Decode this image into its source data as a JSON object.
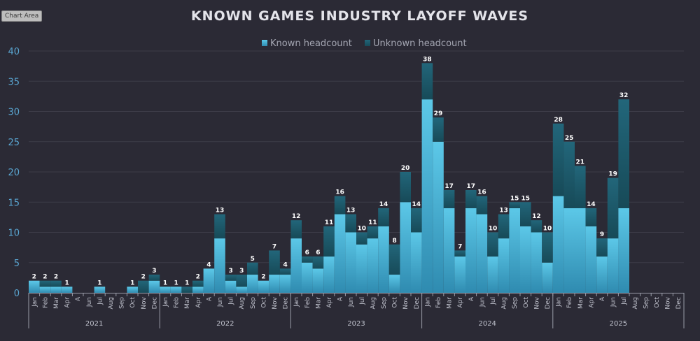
{
  "ui": {
    "chart_area_label": "Chart Area"
  },
  "chart_data": {
    "type": "bar",
    "stacked": true,
    "title": "KNOWN GAMES INDUSTRY LAYOFF WAVES",
    "xlabel": "",
    "ylabel": "",
    "ylim": [
      0,
      40
    ],
    "yticks": [
      0,
      5,
      10,
      15,
      20,
      25,
      30,
      35,
      40
    ],
    "grid": true,
    "legend_position": "top-center",
    "colors": {
      "background": "#2b2a35",
      "known": "#5bc3e4",
      "unknown": "#1d5a6c",
      "grid": "#3d3c48",
      "axis_text": "#5aa6d2"
    },
    "years": [
      "2021",
      "2022",
      "2023",
      "2024",
      "2025"
    ],
    "month_labels": [
      [
        "Jan",
        "Feb",
        "Mar",
        "Apr",
        "A",
        "Jun",
        "Jul",
        "Aug",
        "Sep",
        "Oct",
        "Nov",
        "Dec"
      ],
      [
        "Jan",
        "Feb",
        "Mar",
        "Apr",
        "A",
        "Jun",
        "Jul",
        "Aug",
        "Sep",
        "Oct",
        "Nov",
        "Dec"
      ],
      [
        "Jan",
        "Feb",
        "Mar",
        "Apr",
        "A",
        "Jun",
        "Jul",
        "Aug",
        "Sep",
        "Oct",
        "Nov",
        "Dec"
      ],
      [
        "Jan",
        "Feb",
        "Mar",
        "Apr",
        "A",
        "Jun",
        "Jul",
        "Aug",
        "Sep",
        "Oct",
        "Nov",
        "Dec"
      ],
      [
        "Jan",
        "Feb",
        "Mar",
        "Apr",
        "A",
        "Jun",
        "Jul",
        "Aug",
        "Sep",
        "Oct",
        "Nov",
        "Dec"
      ]
    ],
    "series": [
      {
        "name": "Known headcount",
        "values": [
          2,
          1,
          1,
          1,
          null,
          null,
          1,
          null,
          null,
          1,
          0,
          2,
          1,
          1,
          0,
          1,
          4,
          9,
          2,
          1,
          3,
          2,
          3,
          3,
          9,
          5,
          4,
          6,
          13,
          10,
          8,
          9,
          11,
          3,
          15,
          10,
          32,
          25,
          14,
          6,
          14,
          13,
          6,
          9,
          14,
          11,
          10,
          5,
          16,
          14,
          14,
          11,
          6,
          9,
          14,
          null,
          null,
          null,
          null,
          null
        ]
      },
      {
        "name": "Unknown headcount",
        "values": [
          0,
          1,
          1,
          0,
          null,
          null,
          0,
          null,
          null,
          0,
          2,
          1,
          0,
          0,
          1,
          1,
          0,
          4,
          1,
          2,
          2,
          0,
          4,
          1,
          3,
          1,
          2,
          5,
          3,
          3,
          2,
          2,
          3,
          5,
          5,
          4,
          6,
          4,
          3,
          1,
          3,
          3,
          4,
          4,
          1,
          4,
          2,
          5,
          12,
          11,
          7,
          3,
          3,
          10,
          18,
          null,
          null,
          null,
          null,
          null
        ]
      }
    ],
    "totals": [
      2,
      2,
      2,
      1,
      null,
      null,
      1,
      null,
      null,
      1,
      2,
      3,
      1,
      1,
      1,
      2,
      4,
      13,
      3,
      3,
      5,
      2,
      7,
      4,
      12,
      6,
      6,
      11,
      16,
      13,
      10,
      11,
      14,
      8,
      20,
      14,
      38,
      29,
      17,
      7,
      17,
      16,
      10,
      13,
      15,
      15,
      12,
      10,
      28,
      25,
      21,
      14,
      9,
      19,
      32,
      null,
      null,
      null,
      null,
      null
    ]
  }
}
